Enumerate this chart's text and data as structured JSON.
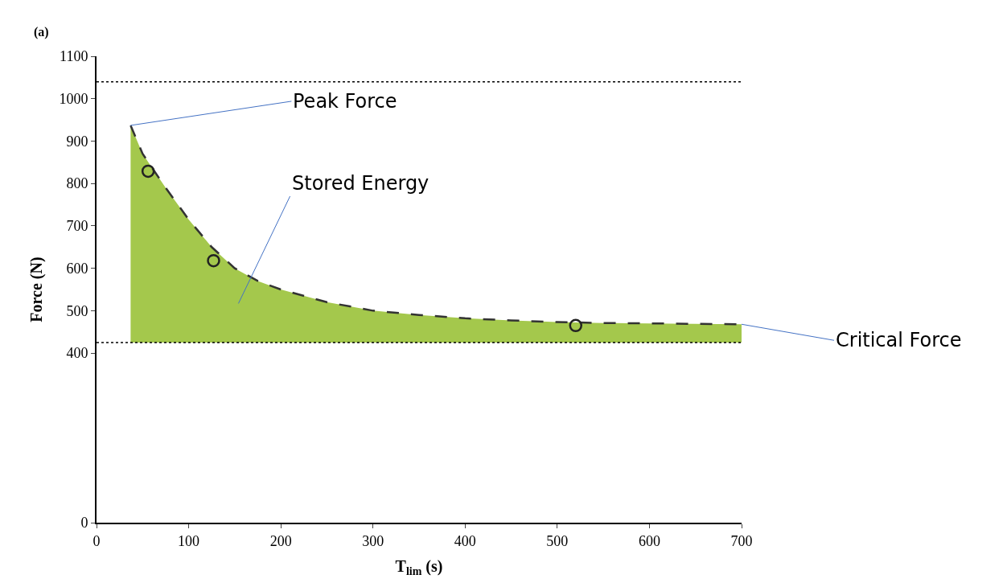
{
  "chart_data": {
    "type": "area",
    "xlabel": "T$_{lim}$ (s)",
    "ylabel": "Force (N)",
    "x": [
      37,
      50,
      75,
      100,
      125,
      150,
      175,
      200,
      250,
      300,
      350,
      400,
      450,
      500,
      550,
      600,
      700
    ],
    "series": [
      {
        "color": "#a4c84c",
        "line_style": "dashed",
        "values": [
          937,
          870,
          790,
          715,
          650,
          600,
          570,
          550,
          520,
          500,
          490,
          482,
          477,
          473,
          471,
          470,
          468
        ]
      },
      {
        "type": "scatter",
        "color": "#222222",
        "marker": "circle",
        "x": [
          56,
          127,
          520
        ],
        "values": [
          829,
          618,
          465
        ]
      }
    ],
    "ref_lines": [
      {
        "axis": "y",
        "value": 1040,
        "color": "#000000",
        "line_style": "dotted"
      },
      {
        "axis": "y",
        "value": 425,
        "color": "#000000",
        "line_style": "dotted"
      }
    ],
    "annotations": [
      "(a)",
      {
        "text": "Peak Force",
        "x": 37,
        "y": 937
      },
      "Stored Energy",
      {
        "text": "Critical Force",
        "x": 700,
        "y": 468
      }
    ],
    "xlim": [
      0,
      700
    ],
    "xticks": [
      0,
      100,
      200,
      300,
      400,
      500,
      600,
      700
    ],
    "ylim": [
      0,
      1100
    ],
    "yticks": [
      0,
      400,
      500,
      600,
      700,
      800,
      900,
      1000,
      1100
    ]
  }
}
